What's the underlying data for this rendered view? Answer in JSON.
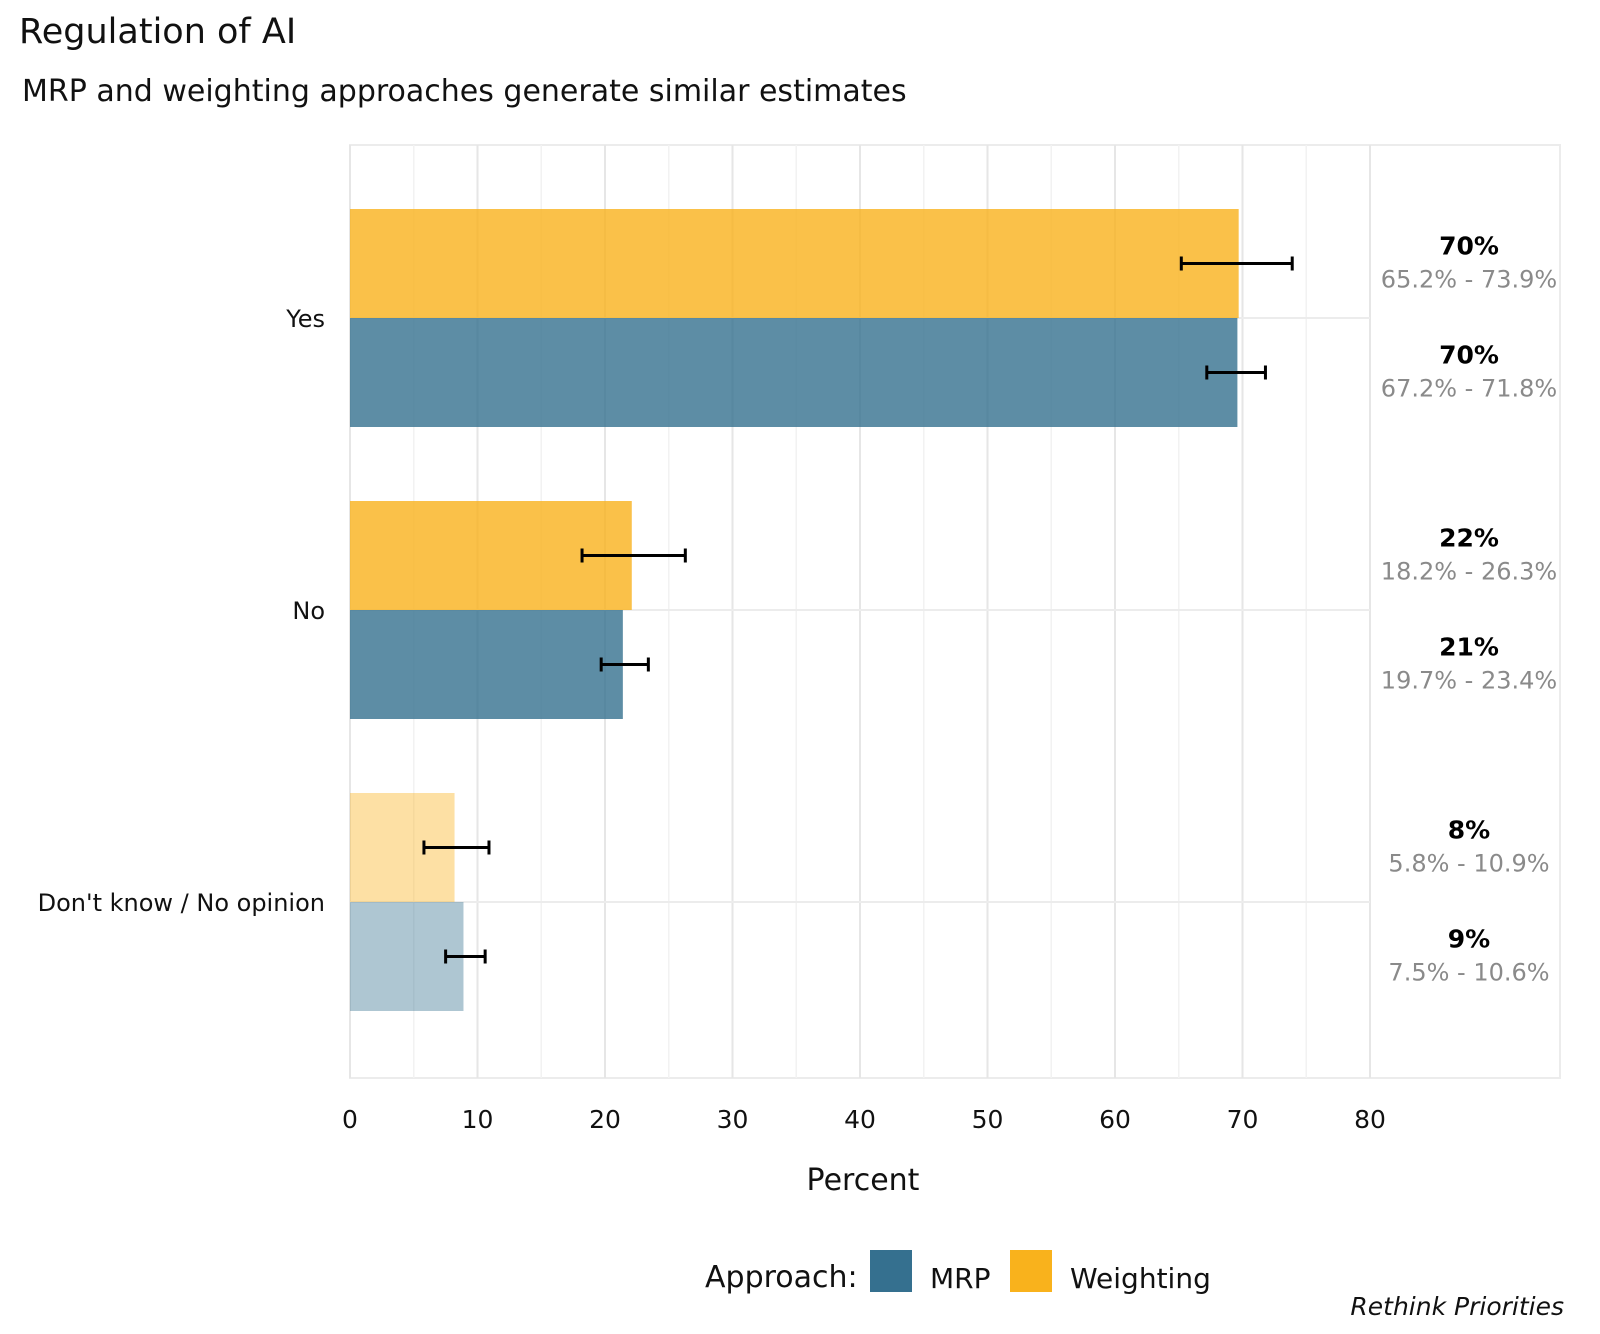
{
  "chart_data": {
    "type": "bar",
    "orientation": "horizontal",
    "title": "Regulation of AI",
    "subtitle": "MRP and weighting approaches generate similar estimates",
    "xlabel": "Percent",
    "ylabel": "",
    "xlim": [
      0,
      80
    ],
    "x_ticks": [
      0,
      10,
      20,
      30,
      40,
      50,
      60,
      70,
      80
    ],
    "grid": true,
    "categories": [
      "Yes",
      "No",
      "Don't know / No opinion"
    ],
    "series": [
      {
        "name": "Weighting",
        "color": "#F9B21C",
        "values": [
          69.7,
          22.1,
          8.2
        ],
        "ci_low": [
          65.2,
          18.2,
          5.8
        ],
        "ci_high": [
          73.9,
          26.3,
          10.9
        ],
        "value_labels": [
          "70%",
          "22%",
          "8%"
        ],
        "ci_labels": [
          "65.2% - 73.9%",
          "18.2% - 26.3%",
          "5.8% - 10.9%"
        ]
      },
      {
        "name": "MRP",
        "color": "#35708F",
        "values": [
          69.6,
          21.4,
          8.9
        ],
        "ci_low": [
          67.2,
          19.7,
          7.5
        ],
        "ci_high": [
          71.8,
          23.4,
          10.6
        ],
        "value_labels": [
          "70%",
          "21%",
          "9%"
        ],
        "ci_labels": [
          "67.2% - 71.8%",
          "19.7% - 23.4%",
          "7.5% - 10.6%"
        ]
      }
    ],
    "faded_category": "Don't know / No opinion",
    "legend": {
      "title": "Approach:",
      "placement": "bottom",
      "items": [
        {
          "name": "MRP",
          "color": "#35708F"
        },
        {
          "name": "Weighting",
          "color": "#F9B21C"
        }
      ]
    },
    "caption": "Rethink Priorities"
  }
}
